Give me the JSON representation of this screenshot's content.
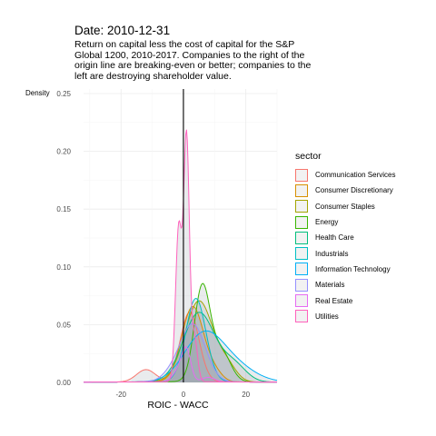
{
  "title": "Date: 2010-12-31",
  "subtitle": "Return on capital less the cost of capital for the S&P Global 1200, 2010-2017. Companies to the right of the origin line are breaking-even or better; companies to the left are destroying shareholder value.",
  "chart_data": {
    "type": "area",
    "xlabel": "ROIC - WACC",
    "ylabel": "Density",
    "xlim": [
      -32,
      30
    ],
    "ylim": [
      0,
      0.25
    ],
    "x_ticks": [
      -20,
      0,
      20
    ],
    "x_tick_labels": [
      "-20",
      "0",
      "20"
    ],
    "y_ticks": [
      0,
      0.05,
      0.1,
      0.15,
      0.2,
      0.25
    ],
    "y_tick_labels": [
      "0.00",
      "0.05",
      "0.10",
      "0.15",
      "0.20",
      "0.25"
    ],
    "reference_line_x": 0,
    "grid": true,
    "legend_title": "sector",
    "legend_position": "right",
    "fill": "#9aa3ab",
    "series": [
      {
        "name": "Communication Services",
        "color": "#F8766D",
        "peaks": [
          {
            "x": 2,
            "s": 3,
            "w": 0.85
          },
          {
            "x": -12,
            "s": 3,
            "w": 0.15
          }
        ],
        "peak": 0.06
      },
      {
        "name": "Consumer Discretionary",
        "color": "#D89000",
        "peaks": [
          {
            "x": 3,
            "s": 3.5,
            "w": 0.9
          },
          {
            "x": 10,
            "s": 2.5,
            "w": 0.1
          }
        ],
        "peak": 0.065
      },
      {
        "name": "Consumer Staples",
        "color": "#A3A500",
        "peaks": [
          {
            "x": 5,
            "s": 4.5,
            "w": 0.85
          },
          {
            "x": 14,
            "s": 3,
            "w": 0.15
          }
        ],
        "peak": 0.07
      },
      {
        "name": "Energy",
        "color": "#39B600",
        "peaks": [
          {
            "x": 6,
            "s": 2.5,
            "w": 0.75
          },
          {
            "x": 12,
            "s": 3,
            "w": 0.25
          }
        ],
        "peak": 0.085
      },
      {
        "name": "Health Care",
        "color": "#00BF7D",
        "peaks": [
          {
            "x": 5,
            "s": 5,
            "w": 0.8
          },
          {
            "x": 16,
            "s": 4,
            "w": 0.2
          }
        ],
        "peak": 0.06
      },
      {
        "name": "Industrials",
        "color": "#00BFC4",
        "peaks": [
          {
            "x": 4,
            "s": 3.2,
            "w": 1
          }
        ],
        "peak": 0.072
      },
      {
        "name": "Information Technology",
        "color": "#00B0F6",
        "peaks": [
          {
            "x": 6,
            "s": 6,
            "w": 0.7
          },
          {
            "x": 15,
            "s": 7,
            "w": 0.3
          }
        ],
        "peak": 0.044
      },
      {
        "name": "Materials",
        "color": "#9590FF",
        "peaks": [
          {
            "x": 3,
            "s": 4,
            "w": 0.9
          },
          {
            "x": -4,
            "s": 3,
            "w": 0.1
          }
        ],
        "peak": 0.05
      },
      {
        "name": "Real Estate",
        "color": "#E76BF3",
        "peaks": [
          {
            "x": 1,
            "s": 1.4,
            "w": 0.6
          },
          {
            "x": -1,
            "s": 2,
            "w": 0.3
          },
          {
            "x": 8,
            "s": 2,
            "w": 0.1
          }
        ],
        "peak": 0.03
      },
      {
        "name": "Utilities",
        "color": "#FF62BC",
        "peaks": [
          {
            "x": 1,
            "s": 0.9,
            "w": 0.55
          },
          {
            "x": -1.5,
            "s": 1,
            "w": 0.35
          },
          {
            "x": 3.5,
            "s": 1,
            "w": 0.1
          }
        ],
        "peak": 0.218
      }
    ]
  }
}
